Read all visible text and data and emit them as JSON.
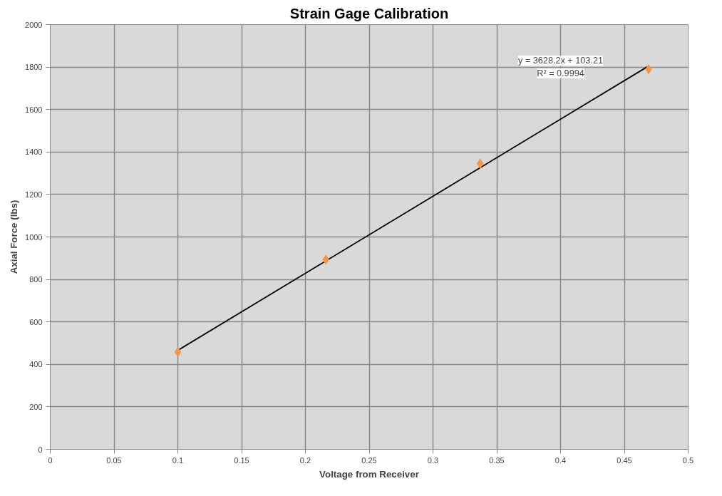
{
  "chart_data": {
    "type": "scatter",
    "title": "Strain Gage Calibration",
    "xlabel": "Voltage from Receiver",
    "ylabel": "Axial Force (lbs)",
    "xlim": [
      0,
      0.5
    ],
    "xticks": [
      0,
      0.05,
      0.1,
      0.15,
      0.2,
      0.25,
      0.3,
      0.35,
      0.4,
      0.45,
      0.5
    ],
    "ylim": [
      0,
      2000
    ],
    "yticks": [
      0,
      200,
      400,
      600,
      800,
      1000,
      1200,
      1400,
      1600,
      1800,
      2000
    ],
    "grid": true,
    "series": [
      {
        "type": "line",
        "color": "#000000",
        "marker": "none",
        "line_style": "solid",
        "x": [
          0.1,
          0.469
        ],
        "values": [
          466,
          1805
        ]
      },
      {
        "color": "#f79646",
        "marker": "diamond",
        "x": [
          0.1,
          0.216,
          0.337,
          0.469
        ],
        "values": [
          458,
          893,
          1345,
          1790
        ]
      }
    ],
    "annotations": [
      "y = 3628.2x + 103.21",
      "R² = 0.9994"
    ]
  }
}
